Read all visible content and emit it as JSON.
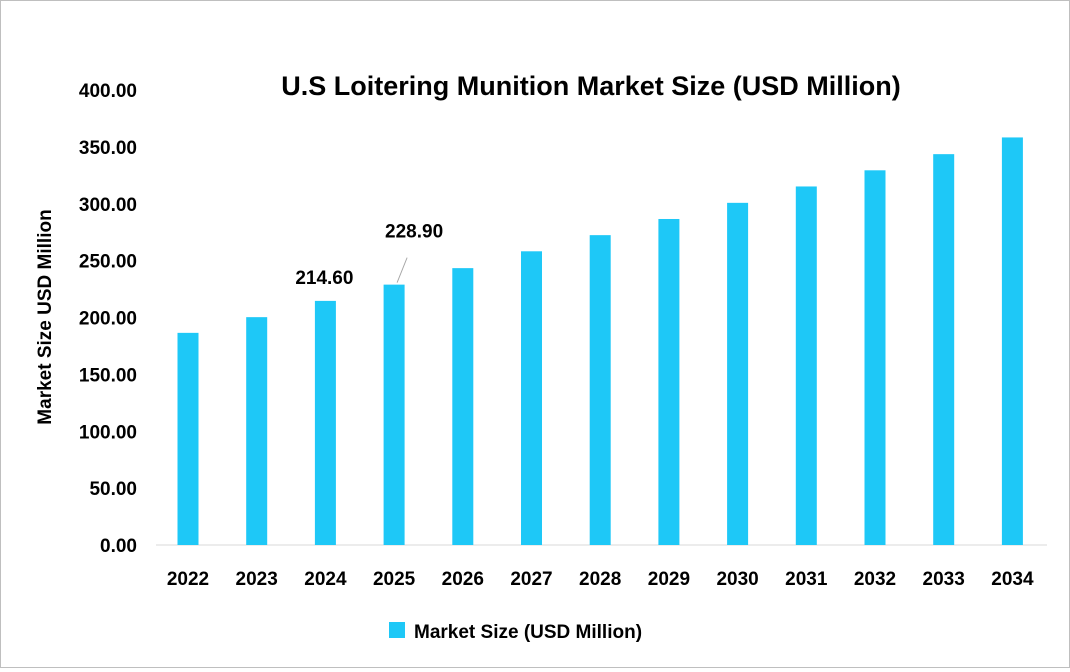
{
  "chart_data": {
    "type": "bar",
    "title": "U.S Loitering Munition Market Size (USD Million)",
    "xlabel": "",
    "ylabel": "Market Size USD Million",
    "ylim": [
      0,
      400
    ],
    "yticks": [
      "0.00",
      "50.00",
      "100.00",
      "150.00",
      "200.00",
      "250.00",
      "300.00",
      "350.00",
      "400.00"
    ],
    "categories": [
      "2022",
      "2023",
      "2024",
      "2025",
      "2026",
      "2027",
      "2028",
      "2029",
      "2030",
      "2031",
      "2032",
      "2033",
      "2034"
    ],
    "series": [
      {
        "name": "Market Size (USD Million)",
        "color": "#1ec8f7",
        "values": [
          186.5,
          200.3,
          214.6,
          228.9,
          243.4,
          258.2,
          272.4,
          286.6,
          300.8,
          315.2,
          329.4,
          343.6,
          358.3
        ]
      }
    ],
    "data_labels": [
      {
        "category": "2024",
        "text": "214.60"
      },
      {
        "category": "2025",
        "text": "228.90"
      }
    ],
    "grid": false,
    "legend": "bottom"
  }
}
